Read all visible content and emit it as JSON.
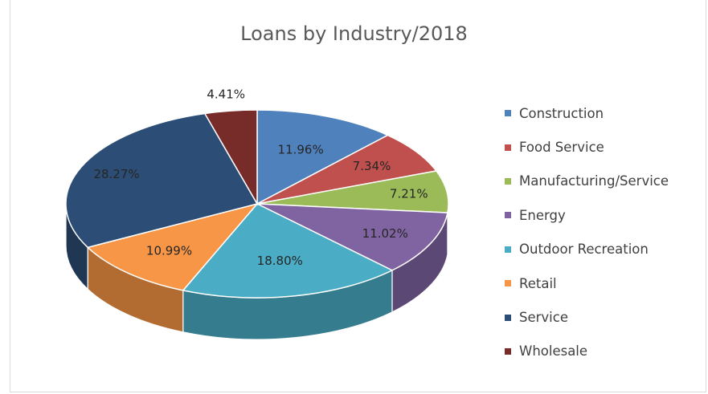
{
  "chart_data": {
    "type": "pie",
    "title": "Loans by Industry/2018",
    "legend_position": "right",
    "slices": [
      {
        "name": "Construction",
        "value": 11.96,
        "label": "11.96%",
        "color": "#4f81bd"
      },
      {
        "name": "Food Service",
        "value": 7.34,
        "label": "7.34%",
        "color": "#c0504d"
      },
      {
        "name": "Manufacturing/Service",
        "value": 7.21,
        "label": "7.21%",
        "color": "#9bbb59"
      },
      {
        "name": "Energy",
        "value": 11.02,
        "label": "11.02%",
        "color": "#8064a2"
      },
      {
        "name": "Outdoor Recreation",
        "value": 18.8,
        "label": "18.80%",
        "color": "#4bacc6"
      },
      {
        "name": "Retail",
        "value": 10.99,
        "label": "10.99%",
        "color": "#f79646"
      },
      {
        "name": "Service",
        "value": 28.27,
        "label": "28.27%",
        "color": "#2c4d75"
      },
      {
        "name": "Wholesale",
        "value": 4.41,
        "label": "4.41%",
        "color": "#772c2a"
      }
    ]
  }
}
